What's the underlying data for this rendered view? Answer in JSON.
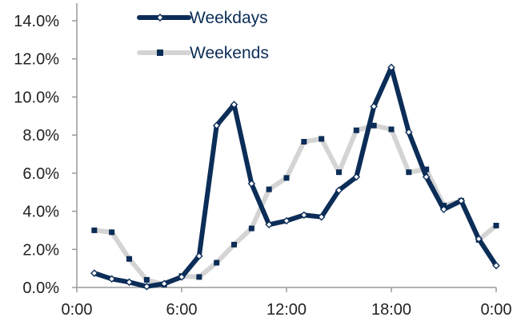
{
  "chart_data": {
    "type": "line",
    "x_tick_labels": [
      "0:00",
      "6:00",
      "12:00",
      "18:00",
      "0:00"
    ],
    "x_tick_hours": [
      0,
      6,
      12,
      18,
      24
    ],
    "y_tick_labels": [
      "0.0%",
      "2.0%",
      "4.0%",
      "6.0%",
      "8.0%",
      "10.0%",
      "12.0%",
      "14.0%"
    ],
    "ylim": [
      0,
      14
    ],
    "xlim": [
      0,
      24
    ],
    "grid": false,
    "legend_position": "top-center",
    "x": [
      1,
      2,
      3,
      4,
      5,
      6,
      7,
      8,
      9,
      10,
      11,
      12,
      13,
      14,
      15,
      16,
      17,
      18,
      19,
      20,
      21,
      22,
      23,
      24
    ],
    "series": [
      {
        "name": "Weekdays",
        "color": "#0b2d57",
        "marker": "diamond",
        "values": [
          0.75,
          0.45,
          0.28,
          0.05,
          0.2,
          0.55,
          1.65,
          8.5,
          9.6,
          5.45,
          3.3,
          3.5,
          3.8,
          3.7,
          5.1,
          5.8,
          9.5,
          11.55,
          8.15,
          5.8,
          4.1,
          4.55,
          2.55,
          1.15
        ]
      },
      {
        "name": "Weekends",
        "color": "#d4d4d4",
        "marker_color": "#0b2d57",
        "marker": "square",
        "values": [
          3.0,
          2.9,
          1.5,
          0.4,
          0.15,
          0.6,
          0.55,
          1.3,
          2.25,
          3.1,
          5.15,
          5.75,
          7.65,
          7.8,
          6.05,
          8.25,
          8.5,
          8.3,
          6.05,
          6.2,
          4.3,
          4.55,
          2.5,
          3.25
        ]
      }
    ]
  }
}
